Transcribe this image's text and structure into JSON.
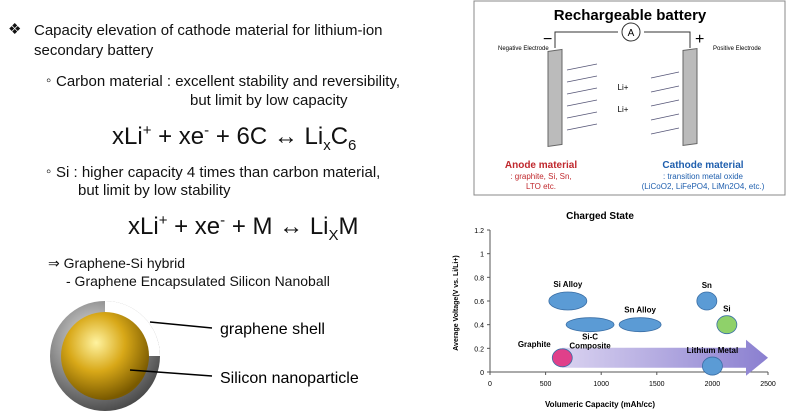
{
  "bullet": {
    "marker": "❖",
    "line1": "Capacity elevation of cathode material for lithium-ion",
    "line2": "secondary battery"
  },
  "carbon": {
    "marker": "◦",
    "line1": "Carbon material : excellent stability and reversibility,",
    "line2": "but  limit by low capacity",
    "equation": [
      "xLi",
      "+",
      " + xe",
      "-",
      " + 6C ↔ Li",
      "x",
      "C",
      "6"
    ]
  },
  "si": {
    "marker": "◦",
    "line1": "Si : higher capacity 4 times than carbon material,",
    "line2": "but  limit by low stability",
    "equation": [
      "xLi",
      "+",
      " + xe",
      "-",
      " + M ↔ Li",
      "X",
      "M"
    ]
  },
  "hybrid": {
    "line1": "⇒ Graphene-Si hybrid",
    "line2": "- Graphene Encapsulated Silicon Nanoball"
  },
  "nanoball": {
    "shell_label": "graphene shell",
    "core_label": "Silicon nanoparticle"
  },
  "battery": {
    "title": "Rechargeable battery",
    "negative": "Negative Electrode",
    "positive": "Positive Electrode",
    "minus": "−",
    "plus": "+",
    "ammeter": "A",
    "ion": "Li+",
    "anode_title": "Anode material",
    "anode_text": [
      ": graphite, Si, Sn,",
      "LTO etc."
    ],
    "cathode_title": "Cathode material",
    "cathode_text": [
      ": transition metal oxide",
      "(LiCoO2, LiFePO4, LiMn2O4, etc.)"
    ]
  },
  "chart": {
    "type": "bubble",
    "title": "Charged State",
    "x_label": "Volumeric Capacity (mAh/cc)",
    "y_label": "Average Voltage(V vs. Li/Li+)",
    "xlim": [
      0,
      2500
    ],
    "xticks": [
      0,
      500,
      1000,
      1500,
      2000,
      2500
    ],
    "ylim": [
      0,
      1.2
    ],
    "yticks": [
      0,
      0.2,
      0.4,
      0.6,
      0.8,
      1,
      1.2
    ],
    "points": [
      {
        "label": [
          "Si Alloy"
        ],
        "x": 700,
        "y": 0.6,
        "color": "#5b9bd5"
      },
      {
        "label": [
          "Si-C",
          "Composite"
        ],
        "x": 900,
        "y": 0.4,
        "color": "#5b9bd5"
      },
      {
        "label": [
          "Sn Alloy"
        ],
        "x": 1350,
        "y": 0.4,
        "color": "#5b9bd5"
      },
      {
        "label": [
          "Sn"
        ],
        "x": 1950,
        "y": 0.6,
        "color": "#5b9bd5"
      },
      {
        "label": [
          "Si"
        ],
        "x": 2130,
        "y": 0.4,
        "color": "#8fd16a"
      },
      {
        "label": [
          "Graphite"
        ],
        "x": 650,
        "y": 0.12,
        "color": "#e0408a"
      },
      {
        "label": [
          "Lithium Metal"
        ],
        "x": 2000,
        "y": 0.05,
        "color": "#5b9bd5"
      }
    ]
  }
}
